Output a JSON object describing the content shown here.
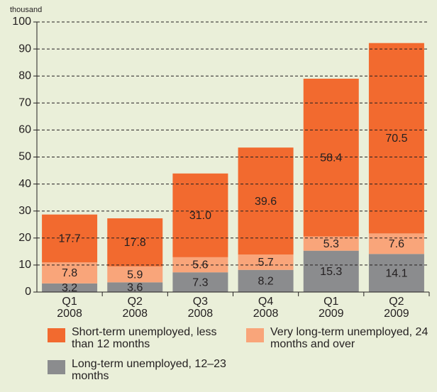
{
  "chart_data": {
    "type": "stacked_bar",
    "y_label": "thousand",
    "categories": [
      "Q1 2008",
      "Q2 2008",
      "Q3 2008",
      "Q4 2008",
      "Q1 2009",
      "Q2 2009"
    ],
    "series": [
      {
        "name": "Long-term unemployed, 12–23 months",
        "color": "#8b8c8e",
        "values": [
          3.2,
          3.6,
          7.3,
          8.2,
          15.3,
          14.1
        ],
        "value_labels": [
          "3.2",
          "3.6",
          "7.3",
          "8.2",
          "15.3",
          "14.1"
        ]
      },
      {
        "name": "Very long-term unemployed, 24 months and over",
        "color": "#f9a57a",
        "values": [
          7.8,
          5.9,
          5.6,
          5.7,
          5.3,
          7.6
        ],
        "value_labels": [
          "7.8",
          "5.9",
          "5.6",
          "5.7",
          "5.3",
          "7.6"
        ]
      },
      {
        "name": "Short-term unemployed, less than 12 months",
        "color": "#f26a2f",
        "values": [
          17.7,
          17.8,
          31.0,
          39.6,
          58.4,
          70.5
        ],
        "value_labels": [
          "17.7",
          "17.8",
          "31.0",
          "39.6",
          "58.4",
          "70.5"
        ]
      }
    ],
    "ylim": [
      0,
      100
    ],
    "yticks": [
      0,
      10,
      20,
      30,
      40,
      50,
      60,
      70,
      80,
      90,
      100
    ],
    "grid": true
  }
}
